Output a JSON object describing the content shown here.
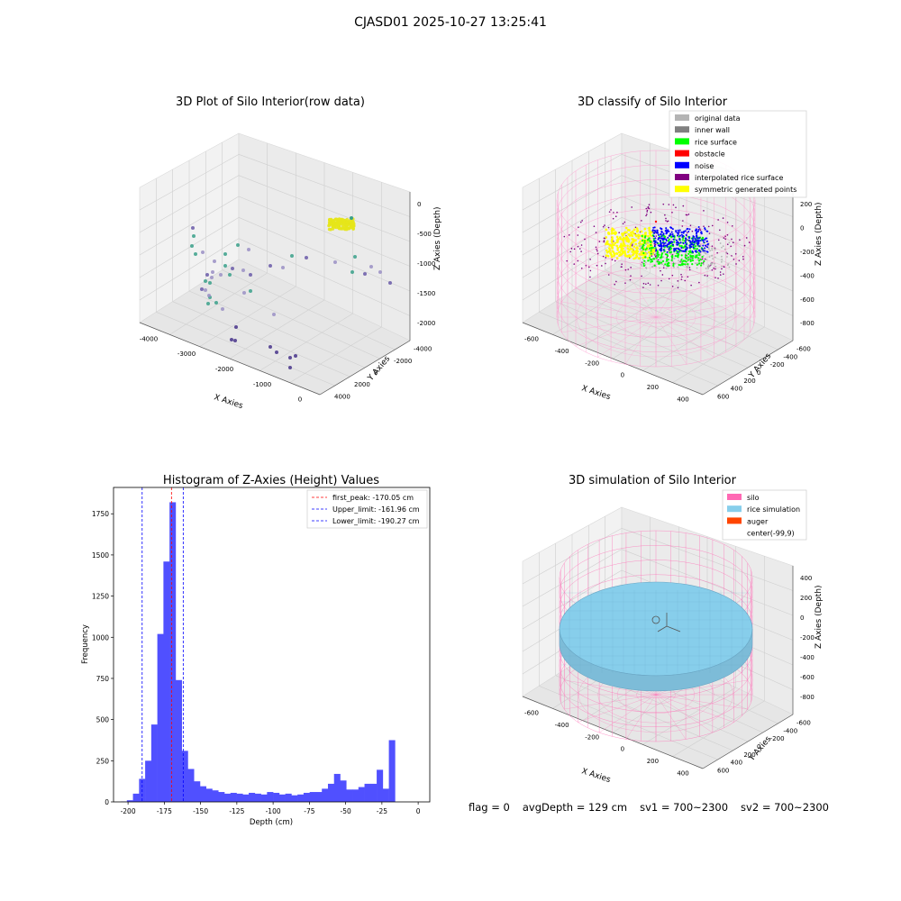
{
  "suptitle": "CJASD01 2025-10-27 13:25:41",
  "footer": {
    "flag": "flag = 0",
    "avg": "avgDepth = 129 cm",
    "sv1": "sv1 = 700~2300",
    "sv2": "sv2 = 700~2300"
  },
  "colors": {
    "original": "#b4b4b4",
    "inner_wall": "#808080",
    "rice_surface": "#00ff00",
    "obstacle": "#ff0000",
    "noise": "#0000ff",
    "interp_surface": "#800080",
    "symmetric": "#ffff00",
    "silo": "#ff69b4",
    "rice_sim": "#87ceeb",
    "auger": "#ff4500",
    "hist_bar": "#5050ff",
    "peak": "#ff0000",
    "limit": "#0000ff"
  },
  "chart_data": [
    {
      "type": "scatter3d",
      "title": "3D Plot of Silo Interior(row data)",
      "xlabel": "X Axies",
      "ylabel": "Y Axies",
      "zlabel": "Z Axies (Depth)",
      "x_ticks": [
        "-4000",
        "-3000",
        "-2000",
        "-1000",
        "0"
      ],
      "y_ticks": [
        "-4000",
        "-2000",
        "0",
        "2000",
        "4000"
      ],
      "z_ticks": [
        "-2000",
        "-1500",
        "-1000",
        "-500",
        "0"
      ],
      "note": "scattered sparse points plus a dense yellow cluster near the top surface"
    },
    {
      "type": "scatter3d",
      "title": "3D classify of Silo Interior",
      "xlabel": "X Axies",
      "ylabel": "Y Axies",
      "zlabel": "Z Axies (Depth)",
      "x_ticks": [
        "-600",
        "-400",
        "-200",
        "0",
        "200",
        "400"
      ],
      "y_ticks": [
        "-600",
        "-400",
        "-200",
        "0",
        "200",
        "400",
        "600"
      ],
      "z_ticks": [
        "-800",
        "-600",
        "-400",
        "-200",
        "0",
        "200"
      ],
      "legend": [
        {
          "label": "original data",
          "color_key": "original"
        },
        {
          "label": "inner wall",
          "color_key": "inner_wall"
        },
        {
          "label": "rice surface",
          "color_key": "rice_surface"
        },
        {
          "label": "obstacle",
          "color_key": "obstacle"
        },
        {
          "label": "noise",
          "color_key": "noise"
        },
        {
          "label": "interpolated rice surface",
          "color_key": "interp_surface"
        },
        {
          "label": "symmetric generated points",
          "color_key": "symmetric"
        }
      ]
    },
    {
      "type": "bar",
      "title": "Histogram of Z-Axies (Height) Values",
      "xlabel": "Depth (cm)",
      "ylabel": "Frequency",
      "xlim": [
        -210,
        8
      ],
      "ylim": [
        0,
        1910
      ],
      "x_ticks": [
        -200,
        -175,
        -150,
        -125,
        -100,
        -75,
        -50,
        -25,
        0
      ],
      "y_ticks": [
        0,
        250,
        500,
        750,
        1000,
        1250,
        1500,
        1750
      ],
      "bin_width": 4.2,
      "bin_start": -205,
      "values": [
        2,
        10,
        50,
        140,
        250,
        470,
        1020,
        1460,
        1820,
        740,
        310,
        200,
        125,
        95,
        80,
        70,
        60,
        50,
        55,
        50,
        45,
        55,
        50,
        45,
        60,
        55,
        45,
        50,
        40,
        45,
        55,
        60,
        60,
        80,
        110,
        170,
        130,
        75,
        75,
        90,
        110,
        110,
        195,
        80,
        375
      ],
      "lines": [
        {
          "label": "first_peak: -170.05 cm",
          "x": -170.05,
          "color_key": "peak"
        },
        {
          "label": "Upper_limit: -161.96 cm",
          "x": -161.96,
          "color_key": "limit"
        },
        {
          "label": "Lower_limit: -190.27 cm",
          "x": -190.27,
          "color_key": "limit"
        }
      ],
      "legend_position": "top-right"
    },
    {
      "type": "surface3d",
      "title": "3D simulation of Silo Interior",
      "xlabel": "X Axies",
      "ylabel": "Y Axies",
      "zlabel": "Z Axies (Depth)",
      "x_ticks": [
        "-600",
        "-400",
        "-200",
        "0",
        "200",
        "400"
      ],
      "y_ticks": [
        "-600",
        "-400",
        "-200",
        "0",
        "200",
        "400",
        "600"
      ],
      "z_ticks": [
        "-800",
        "-600",
        "-400",
        "-200",
        "0",
        "200",
        "400"
      ],
      "legend": [
        {
          "label": "silo",
          "color_key": "silo"
        },
        {
          "label": "rice simulation",
          "color_key": "rice_sim"
        },
        {
          "label": "auger",
          "color_key": "auger"
        },
        {
          "label": "center(-99,9)",
          "color_key": ""
        }
      ]
    }
  ]
}
